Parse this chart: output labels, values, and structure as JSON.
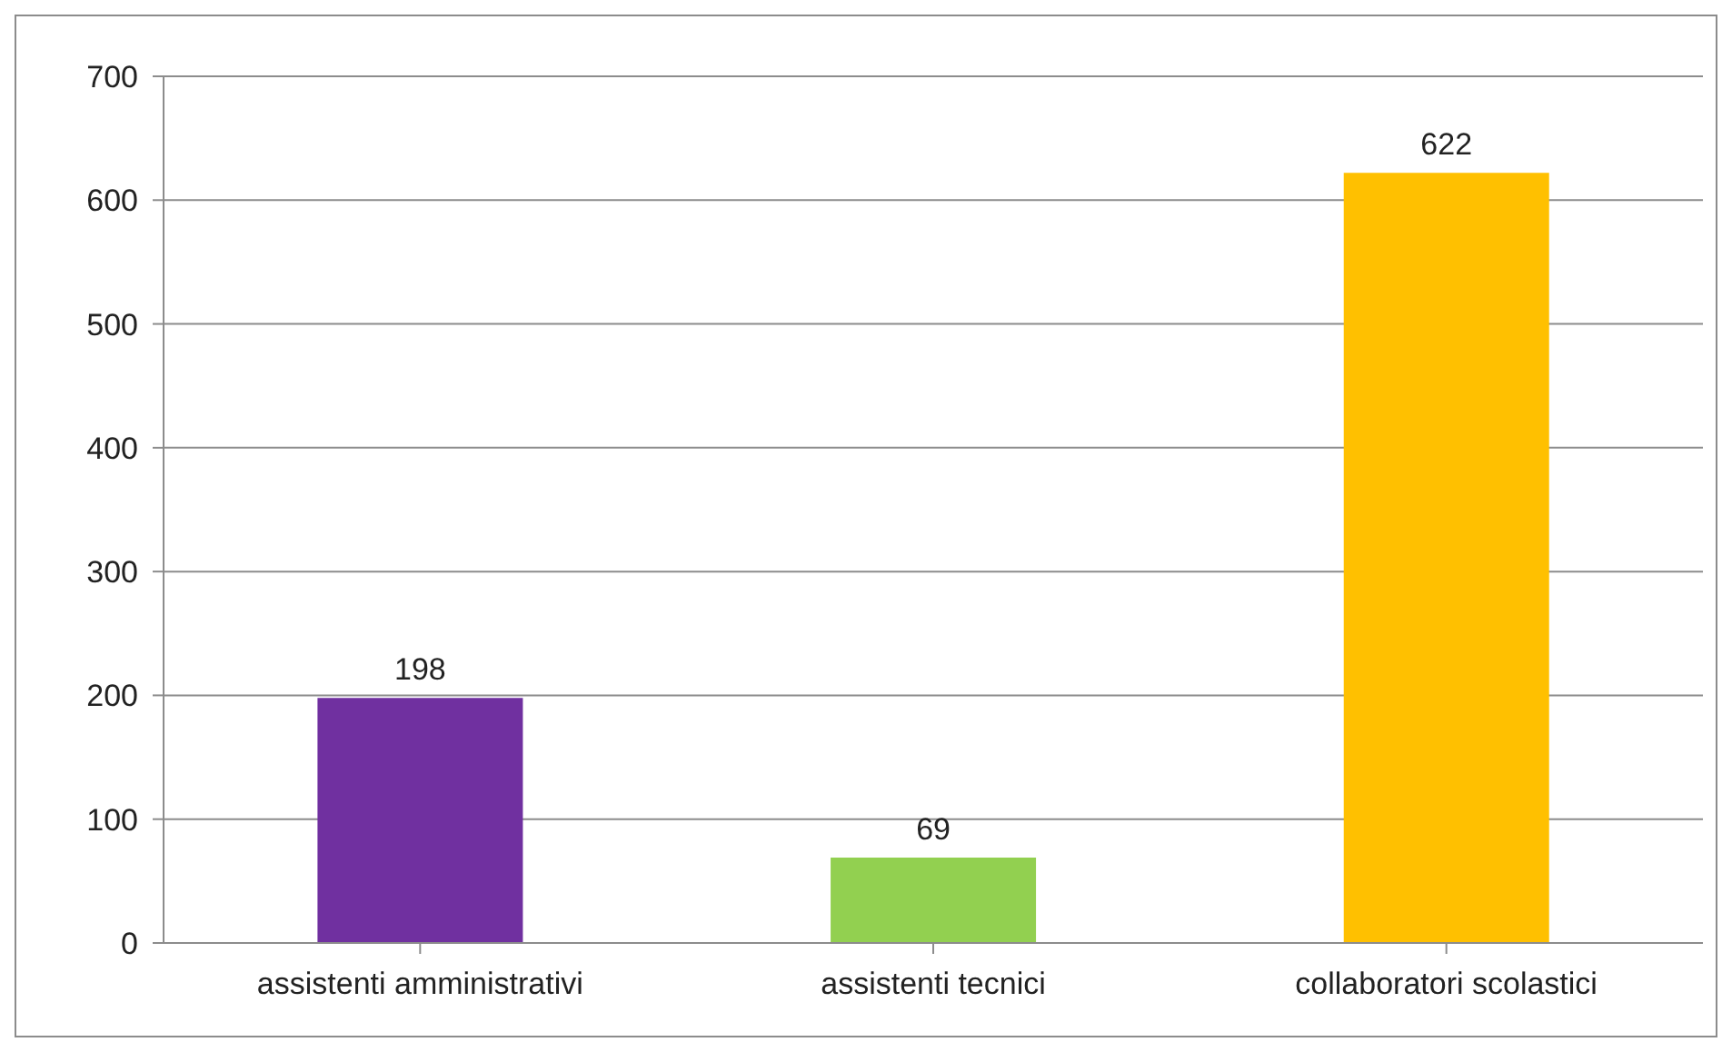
{
  "chart_data": {
    "type": "bar",
    "categories": [
      "assistenti amministrativi",
      "assistenti tecnici",
      "collaboratori scolastici"
    ],
    "values": [
      198,
      69,
      622
    ],
    "colors": [
      "#7030a0",
      "#92d050",
      "#ffc000"
    ],
    "ylim": [
      0,
      700
    ],
    "yticks": [
      0,
      100,
      200,
      300,
      400,
      500,
      600,
      700
    ],
    "grid": "y",
    "data_labels": true
  }
}
